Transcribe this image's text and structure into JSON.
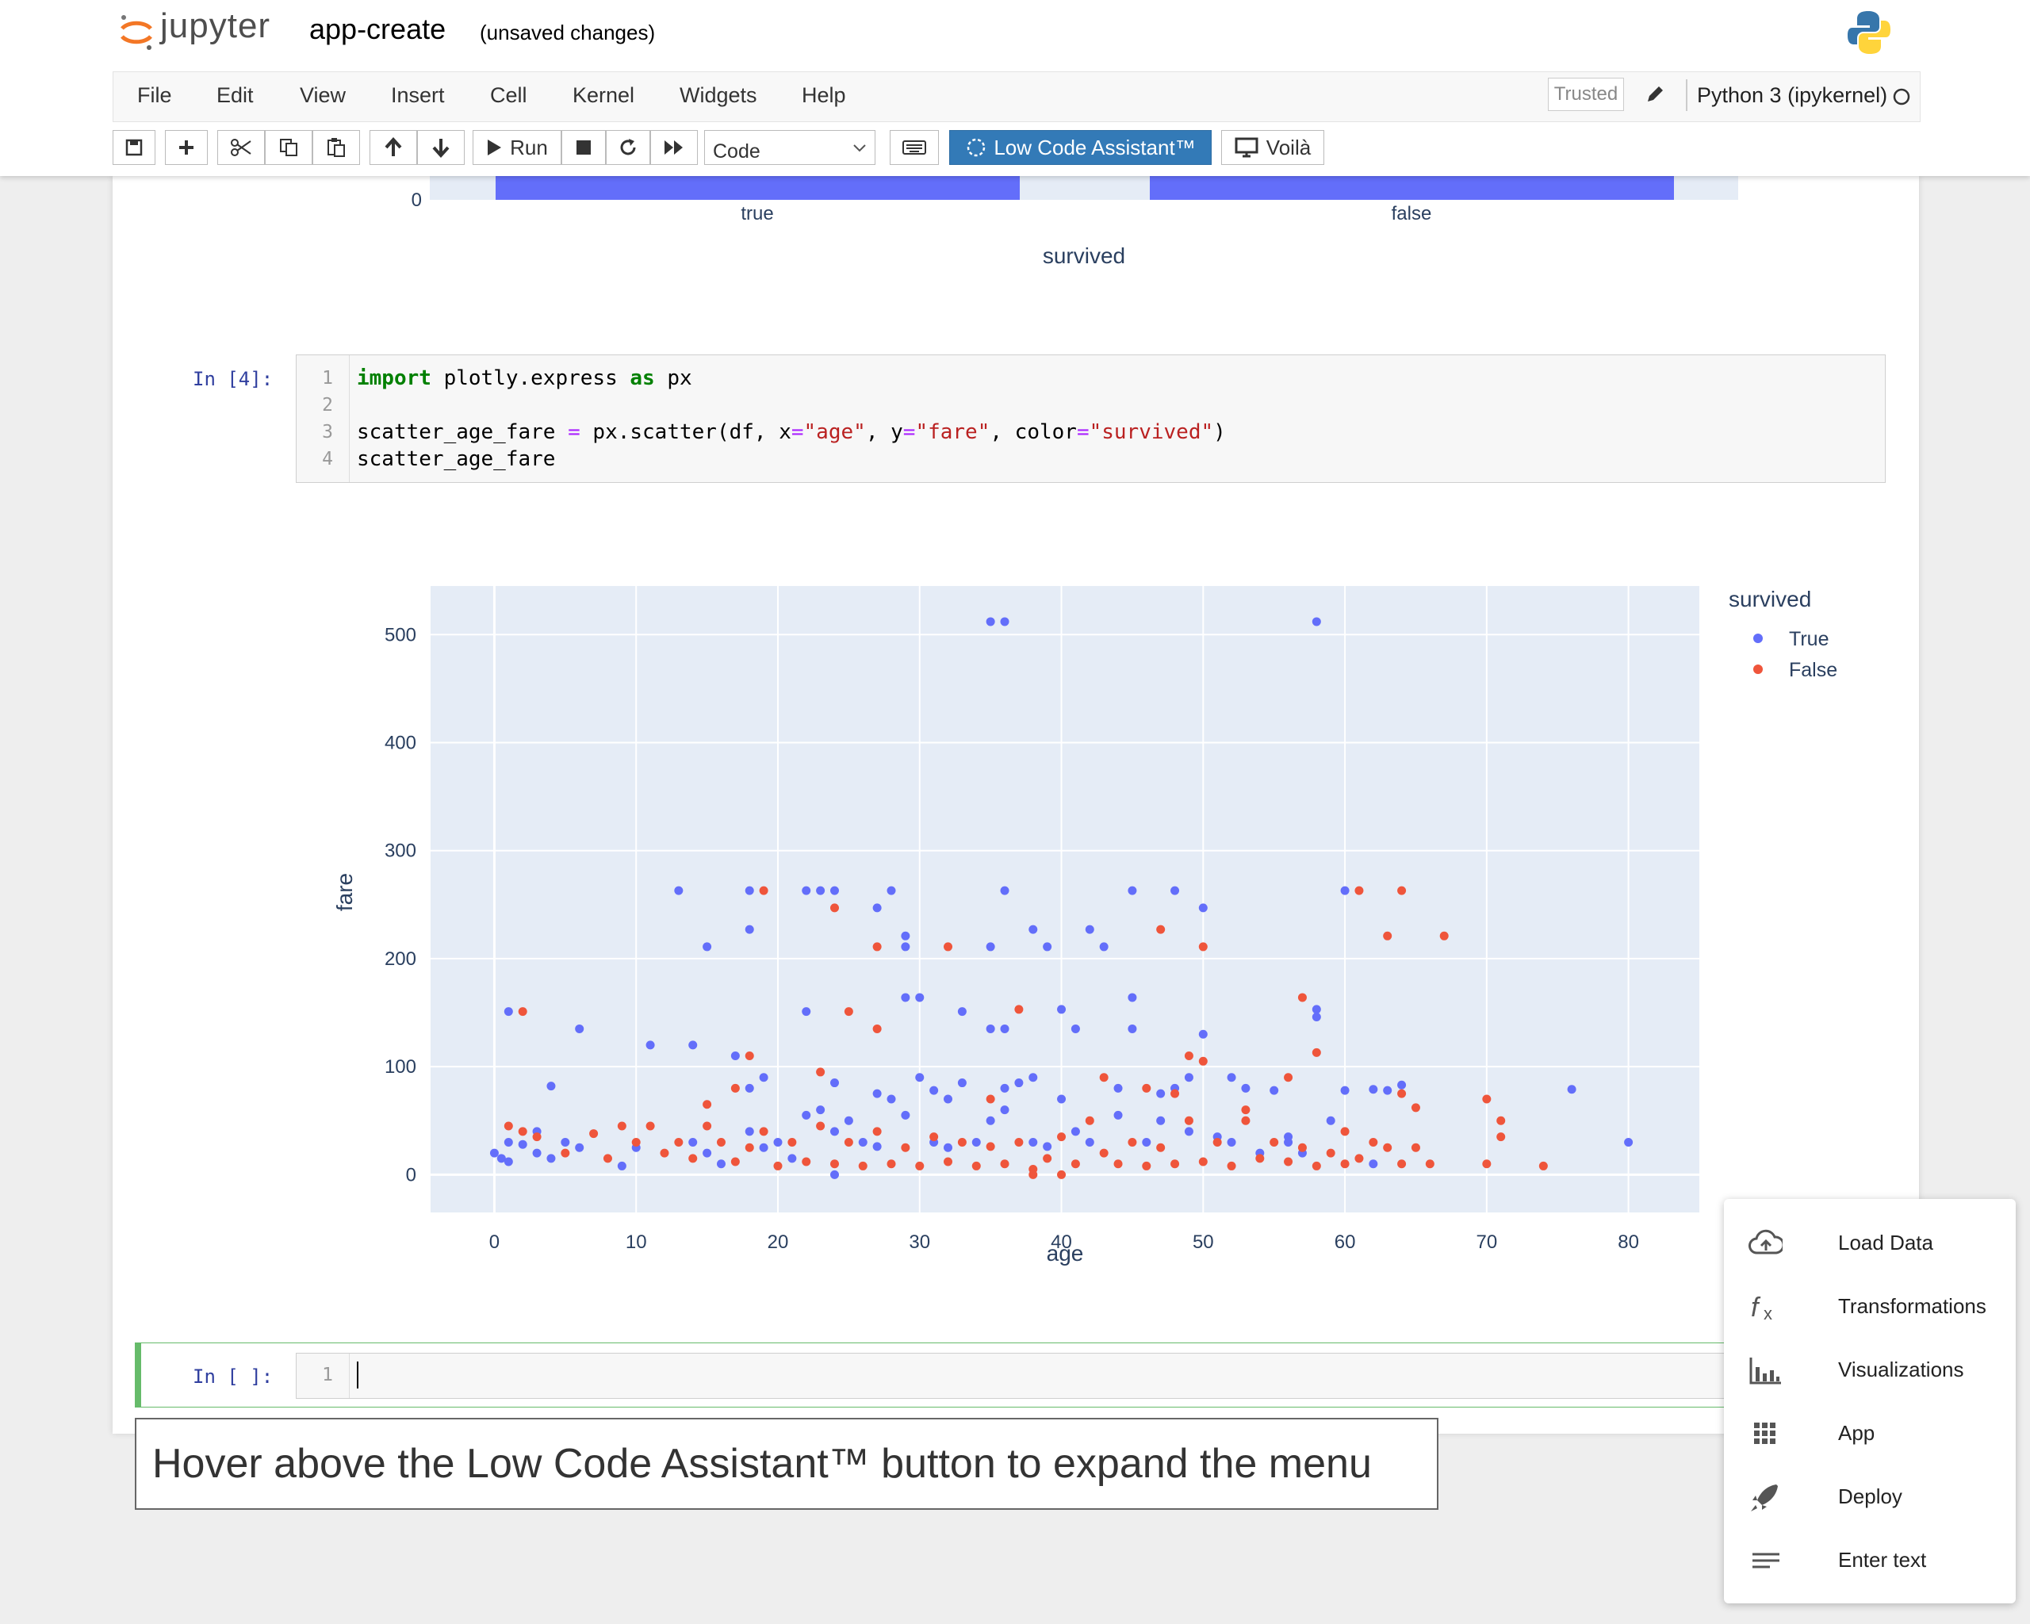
{
  "header": {
    "logo_text": "jupyter",
    "notebook_title": "app-create",
    "save_status": "(unsaved changes)"
  },
  "menubar": {
    "items": [
      "File",
      "Edit",
      "View",
      "Insert",
      "Cell",
      "Kernel",
      "Widgets",
      "Help"
    ],
    "trusted": "Trusted",
    "kernel": "Python 3 (ipykernel)"
  },
  "toolbar": {
    "run_label": "Run",
    "cell_type": "Code",
    "lca_label": "Low Code Assistant™",
    "voila_label": "Voilà"
  },
  "bar_chart_fragment": {
    "categories": [
      "true",
      "false"
    ],
    "xlabel": "survived",
    "zero_tick": "0"
  },
  "code_cell": {
    "prompt": "In [4]:",
    "line_numbers": [
      "1",
      "2",
      "3",
      "4"
    ]
  },
  "empty_cell": {
    "prompt": "In [ ]:",
    "line_number": "1"
  },
  "chart_data": {
    "type": "scatter",
    "xlabel": "age",
    "ylabel": "fare",
    "xlim": [
      -4.5,
      85
    ],
    "ylim": [
      -35,
      545
    ],
    "x_ticks": [
      0,
      10,
      20,
      30,
      40,
      50,
      60,
      70,
      80
    ],
    "y_ticks": [
      0,
      100,
      200,
      300,
      400,
      500
    ],
    "legend_title": "survived",
    "legend_placement": "right",
    "series": [
      {
        "name": "True",
        "color": "#636efa",
        "points": [
          [
            35,
            512
          ],
          [
            36,
            512
          ],
          [
            58,
            512
          ],
          [
            13,
            263
          ],
          [
            18,
            263
          ],
          [
            22,
            263
          ],
          [
            23,
            263
          ],
          [
            24,
            263
          ],
          [
            28,
            263
          ],
          [
            36,
            263
          ],
          [
            45,
            263
          ],
          [
            48,
            263
          ],
          [
            60,
            263
          ],
          [
            18,
            227
          ],
          [
            27,
            247
          ],
          [
            29,
            221
          ],
          [
            29,
            211
          ],
          [
            15,
            211
          ],
          [
            35,
            211
          ],
          [
            38,
            227
          ],
          [
            39,
            211
          ],
          [
            42,
            227
          ],
          [
            43,
            211
          ],
          [
            50,
            247
          ],
          [
            1,
            151
          ],
          [
            6,
            135
          ],
          [
            11,
            120
          ],
          [
            14,
            120
          ],
          [
            4,
            82
          ],
          [
            22,
            151
          ],
          [
            29,
            164
          ],
          [
            30,
            164
          ],
          [
            33,
            151
          ],
          [
            35,
            135
          ],
          [
            36,
            135
          ],
          [
            40,
            153
          ],
          [
            41,
            135
          ],
          [
            45,
            164
          ],
          [
            45,
            135
          ],
          [
            58,
            153
          ],
          [
            58,
            146
          ],
          [
            60,
            78
          ],
          [
            62,
            79
          ],
          [
            63,
            78
          ],
          [
            64,
            83
          ],
          [
            76,
            79
          ],
          [
            80,
            30
          ],
          [
            17,
            110
          ],
          [
            18,
            80
          ],
          [
            19,
            90
          ],
          [
            24,
            85
          ],
          [
            27,
            75
          ],
          [
            30,
            90
          ],
          [
            31,
            78
          ],
          [
            32,
            70
          ],
          [
            33,
            85
          ],
          [
            36,
            80
          ],
          [
            37,
            85
          ],
          [
            38,
            90
          ],
          [
            40,
            70
          ],
          [
            44,
            80
          ],
          [
            47,
            75
          ],
          [
            48,
            80
          ],
          [
            49,
            90
          ],
          [
            50,
            130
          ],
          [
            52,
            90
          ],
          [
            53,
            80
          ],
          [
            55,
            78
          ],
          [
            56,
            30
          ],
          [
            57,
            20
          ],
          [
            59,
            50
          ],
          [
            0,
            20
          ],
          [
            0.5,
            15
          ],
          [
            1,
            30
          ],
          [
            1,
            12
          ],
          [
            2,
            28
          ],
          [
            3,
            40
          ],
          [
            3,
            20
          ],
          [
            4,
            15
          ],
          [
            5,
            30
          ],
          [
            6,
            25
          ],
          [
            9,
            8
          ],
          [
            10,
            25
          ],
          [
            14,
            30
          ],
          [
            15,
            20
          ],
          [
            16,
            10
          ],
          [
            18,
            40
          ],
          [
            19,
            25
          ],
          [
            20,
            30
          ],
          [
            21,
            15
          ],
          [
            22,
            55
          ],
          [
            23,
            60
          ],
          [
            24,
            40
          ],
          [
            25,
            50
          ],
          [
            26,
            30
          ],
          [
            27,
            26
          ],
          [
            28,
            70
          ],
          [
            29,
            55
          ],
          [
            31,
            30
          ],
          [
            32,
            25
          ],
          [
            34,
            30
          ],
          [
            35,
            50
          ],
          [
            36,
            60
          ],
          [
            38,
            30
          ],
          [
            39,
            26
          ],
          [
            41,
            40
          ],
          [
            42,
            30
          ],
          [
            44,
            55
          ],
          [
            46,
            30
          ],
          [
            47,
            50
          ],
          [
            49,
            40
          ],
          [
            51,
            35
          ],
          [
            52,
            30
          ],
          [
            54,
            20
          ],
          [
            56,
            35
          ],
          [
            62,
            10
          ],
          [
            24,
            0
          ]
        ]
      },
      {
        "name": "False",
        "color": "#ef553b",
        "points": [
          [
            19,
            263
          ],
          [
            24,
            247
          ],
          [
            27,
            211
          ],
          [
            32,
            211
          ],
          [
            37,
            153
          ],
          [
            47,
            227
          ],
          [
            50,
            211
          ],
          [
            61,
            263
          ],
          [
            63,
            221
          ],
          [
            64,
            263
          ],
          [
            67,
            221
          ],
          [
            2,
            151
          ],
          [
            25,
            151
          ],
          [
            27,
            135
          ],
          [
            49,
            110
          ],
          [
            50,
            105
          ],
          [
            57,
            164
          ],
          [
            58,
            113
          ],
          [
            70,
            70
          ],
          [
            71,
            50
          ],
          [
            71,
            35
          ],
          [
            70,
            10
          ],
          [
            74,
            8
          ],
          [
            66,
            10
          ],
          [
            65,
            62
          ],
          [
            64,
            75
          ],
          [
            18,
            110
          ],
          [
            15,
            65
          ],
          [
            17,
            80
          ],
          [
            23,
            95
          ],
          [
            35,
            70
          ],
          [
            43,
            90
          ],
          [
            46,
            80
          ],
          [
            48,
            75
          ],
          [
            53,
            60
          ],
          [
            56,
            90
          ],
          [
            1,
            45
          ],
          [
            2,
            40
          ],
          [
            3,
            35
          ],
          [
            5,
            20
          ],
          [
            7,
            38
          ],
          [
            8,
            15
          ],
          [
            9,
            45
          ],
          [
            10,
            30
          ],
          [
            11,
            45
          ],
          [
            12,
            20
          ],
          [
            13,
            30
          ],
          [
            14,
            15
          ],
          [
            15,
            45
          ],
          [
            16,
            30
          ],
          [
            17,
            12
          ],
          [
            18,
            25
          ],
          [
            19,
            40
          ],
          [
            20,
            8
          ],
          [
            21,
            30
          ],
          [
            22,
            12
          ],
          [
            23,
            45
          ],
          [
            24,
            10
          ],
          [
            25,
            30
          ],
          [
            26,
            8
          ],
          [
            27,
            40
          ],
          [
            28,
            10
          ],
          [
            29,
            25
          ],
          [
            30,
            8
          ],
          [
            31,
            35
          ],
          [
            32,
            12
          ],
          [
            33,
            30
          ],
          [
            34,
            8
          ],
          [
            35,
            26
          ],
          [
            36,
            10
          ],
          [
            37,
            30
          ],
          [
            38,
            5
          ],
          [
            39,
            15
          ],
          [
            40,
            35
          ],
          [
            41,
            10
          ],
          [
            42,
            50
          ],
          [
            43,
            20
          ],
          [
            44,
            10
          ],
          [
            45,
            30
          ],
          [
            46,
            8
          ],
          [
            47,
            25
          ],
          [
            48,
            10
          ],
          [
            49,
            50
          ],
          [
            50,
            12
          ],
          [
            51,
            30
          ],
          [
            52,
            8
          ],
          [
            53,
            50
          ],
          [
            54,
            15
          ],
          [
            55,
            30
          ],
          [
            56,
            12
          ],
          [
            57,
            25
          ],
          [
            58,
            8
          ],
          [
            59,
            20
          ],
          [
            60,
            40
          ],
          [
            61,
            15
          ],
          [
            62,
            30
          ],
          [
            63,
            25
          ],
          [
            64,
            10
          ],
          [
            65,
            25
          ],
          [
            60,
            10
          ],
          [
            40,
            0
          ],
          [
            38,
            0
          ]
        ]
      }
    ]
  },
  "lca_menu": {
    "items": [
      {
        "label": "Load Data",
        "icon": "cloud-upload-icon"
      },
      {
        "label": "Transformations",
        "icon": "function-icon"
      },
      {
        "label": "Visualizations",
        "icon": "bar-chart-icon"
      },
      {
        "label": "App",
        "icon": "grid-icon"
      },
      {
        "label": "Deploy",
        "icon": "rocket-icon"
      },
      {
        "label": "Enter text",
        "icon": "text-lines-icon"
      }
    ]
  },
  "caption": "Hover above the Low Code Assistant™ button to expand the menu"
}
